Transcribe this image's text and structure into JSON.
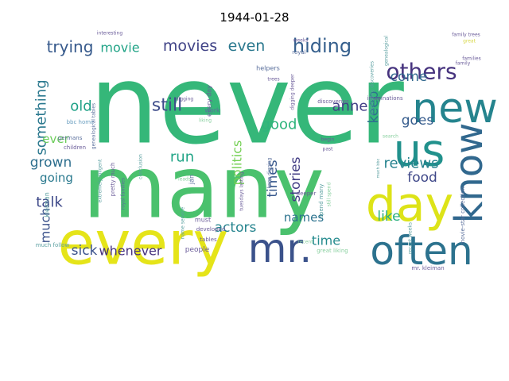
{
  "chart_data": {
    "type": "wordcloud",
    "title": "1944-01-28",
    "background": "#ffffff",
    "colormap": "viridis",
    "words": [
      {
        "text": "never",
        "color": "#35b779",
        "rotated": false
      },
      {
        "text": "many",
        "color": "#4ac16d",
        "rotated": false
      },
      {
        "text": "every",
        "color": "#e5e419",
        "rotated": false
      },
      {
        "text": "often",
        "color": "#2c728e",
        "rotated": false
      },
      {
        "text": "day",
        "color": "#dde318",
        "rotated": false
      },
      {
        "text": "new",
        "color": "#25848e",
        "rotated": false
      },
      {
        "text": "know",
        "color": "#31688e",
        "rotated": true
      },
      {
        "text": "us",
        "color": "#21918c",
        "rotated": false
      },
      {
        "text": "mr.",
        "color": "#3b528b",
        "rotated": false
      },
      {
        "text": "others",
        "color": "#46337e",
        "rotated": false
      },
      {
        "text": "hiding",
        "color": "#355f8d",
        "rotated": false
      },
      {
        "text": "movies",
        "color": "#414487",
        "rotated": false
      },
      {
        "text": "even",
        "color": "#2a788e",
        "rotated": false
      },
      {
        "text": "trying",
        "color": "#375a8c",
        "rotated": false
      },
      {
        "text": "movie",
        "color": "#20a386",
        "rotated": false
      },
      {
        "text": "something",
        "color": "#2a788e",
        "rotated": true
      },
      {
        "text": "still",
        "color": "#3e4c8a",
        "rotated": false
      },
      {
        "text": "old",
        "color": "#1fa187",
        "rotated": false
      },
      {
        "text": "anne",
        "color": "#424086",
        "rotated": false
      },
      {
        "text": "keep",
        "color": "#2d718e",
        "rotated": true
      },
      {
        "text": "come",
        "color": "#31688e",
        "rotated": false
      },
      {
        "text": "goes",
        "color": "#365c8d",
        "rotated": false
      },
      {
        "text": "good",
        "color": "#2fb47c",
        "rotated": false
      },
      {
        "text": "ever",
        "color": "#6ccd5a",
        "rotated": false
      },
      {
        "text": "grown",
        "color": "#2e6f8e",
        "rotated": false
      },
      {
        "text": "run",
        "color": "#20a486",
        "rotated": false
      },
      {
        "text": "politics",
        "color": "#75d054",
        "rotated": true
      },
      {
        "text": "times",
        "color": "#38588c",
        "rotated": true
      },
      {
        "text": "stories",
        "color": "#433e85",
        "rotated": true
      },
      {
        "text": "reviews",
        "color": "#26828e",
        "rotated": false
      },
      {
        "text": "food",
        "color": "#3f4889",
        "rotated": false
      },
      {
        "text": "going",
        "color": "#29798e",
        "rotated": false
      },
      {
        "text": "talk",
        "color": "#3e4989",
        "rotated": false
      },
      {
        "text": "much",
        "color": "#3b528b",
        "rotated": true
      },
      {
        "text": "actors",
        "color": "#25848e",
        "rotated": false
      },
      {
        "text": "names",
        "color": "#2c728e",
        "rotated": false
      },
      {
        "text": "like",
        "color": "#29af7f",
        "rotated": false
      },
      {
        "text": "time",
        "color": "#238a8d",
        "rotated": false
      },
      {
        "text": "sick",
        "color": "#3b528b",
        "rotated": false
      },
      {
        "text": "whenever",
        "color": "#46327e",
        "rotated": false
      },
      {
        "text": "interesting",
        "color": "#6b5d9a",
        "rotated": false
      },
      {
        "text": "weeks",
        "color": "#6b5d9a",
        "rotated": false
      },
      {
        "text": "family trees",
        "color": "#6b5d9a",
        "rotated": false
      },
      {
        "text": "family",
        "color": "#6b5d9a",
        "rotated": false
      },
      {
        "text": "royal",
        "color": "#5a6f9c",
        "rotated": false
      },
      {
        "text": "helpers",
        "color": "#5a6f9c",
        "rotated": false
      },
      {
        "text": "trees",
        "color": "#6b5d9a",
        "rotated": false
      },
      {
        "text": "digging",
        "color": "#6b5d9a",
        "rotated": false
      },
      {
        "text": "digging deeper",
        "color": "#6b5d9a",
        "rotated": true
      },
      {
        "text": "imaginations",
        "color": "#6b5d9a",
        "rotated": false
      },
      {
        "text": "interesting discoveries",
        "color": "#5a9fa0",
        "rotated": true
      },
      {
        "text": "discoveries",
        "color": "#6b5d9a",
        "rotated": false
      },
      {
        "text": "every day",
        "color": "#6b5d9a",
        "rotated": true
      },
      {
        "text": "work",
        "color": "#5a6f9c",
        "rotated": false
      },
      {
        "text": "liking",
        "color": "#8ad0a0",
        "rotated": false
      },
      {
        "text": "bbc home",
        "color": "#6b9fc0",
        "rotated": false
      },
      {
        "text": "germans",
        "color": "#5a6f9c",
        "rotated": false
      },
      {
        "text": "genealogical tables",
        "color": "#5a6f9c",
        "rotated": true
      },
      {
        "text": "children",
        "color": "#6b5d9a",
        "rotated": false
      },
      {
        "text": "extremely diligent",
        "color": "#5a9fa0",
        "rotated": true
      },
      {
        "text": "pretty much",
        "color": "#6b5d9a",
        "rotated": true
      },
      {
        "text": "royal families",
        "color": "#5a6f9c",
        "rotated": true
      },
      {
        "text": "leads",
        "color": "#8ad0a0",
        "rotated": false
      },
      {
        "text": "conclusion",
        "color": "#5a9fa0",
        "rotated": true
      },
      {
        "text": "much follow",
        "color": "#5a9fa0",
        "rotated": false
      },
      {
        "text": "jan",
        "color": "#5a6f9c",
        "rotated": true
      },
      {
        "text": "kleiman",
        "color": "#5a9fa0",
        "rotated": true
      },
      {
        "text": "name service",
        "color": "#5a9fa0",
        "rotated": true
      },
      {
        "text": "must",
        "color": "#6b5d9a",
        "rotated": false
      },
      {
        "text": "developed",
        "color": "#6b5d9a",
        "rotated": false
      },
      {
        "text": "tables",
        "color": "#6b5d9a",
        "rotated": false
      },
      {
        "text": "people",
        "color": "#6b5d9a",
        "rotated": false
      },
      {
        "text": "spend many",
        "color": "#5a9fa0",
        "rotated": true
      },
      {
        "text": "keep digging",
        "color": "#5a6f9c",
        "rotated": true
      },
      {
        "text": "tuesdays lasting",
        "color": "#6b5d9a",
        "rotated": true
      },
      {
        "text": "deeper",
        "color": "#6b5d9a",
        "rotated": false
      },
      {
        "text": "past",
        "color": "#6b5d9a",
        "rotated": false
      },
      {
        "text": "begin",
        "color": "#6b5d9a",
        "rotated": false
      },
      {
        "text": "recent",
        "color": "#8ad0a0",
        "rotated": false
      },
      {
        "text": "great liking",
        "color": "#8ad0a0",
        "rotated": false
      },
      {
        "text": "still spend",
        "color": "#8ad0a0",
        "rotated": true
      },
      {
        "text": "search",
        "color": "#8ad0a0",
        "rotated": false
      },
      {
        "text": "movie-star collection",
        "color": "#5a6f9c",
        "rotated": true
      },
      {
        "text": "mr. kleiman",
        "color": "#6b5d9a",
        "rotated": false
      },
      {
        "text": "recent weeks",
        "color": "#5a9fa0",
        "rotated": true
      },
      {
        "text": "genealogical",
        "color": "#5a9fa0",
        "rotated": true
      },
      {
        "text": "families",
        "color": "#6b5d9a",
        "rotated": false
      },
      {
        "text": "great",
        "color": "#d8d84a",
        "rotated": false
      },
      {
        "text": "much bbc",
        "color": "#5a9fa0",
        "rotated": true
      }
    ]
  }
}
